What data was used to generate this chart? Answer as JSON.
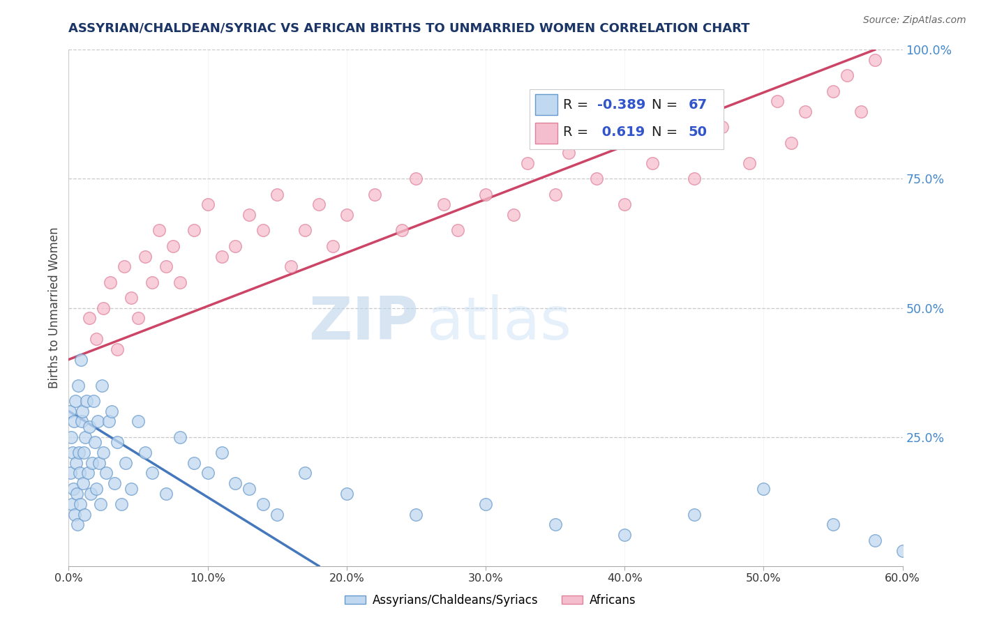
{
  "title": "ASSYRIAN/CHALDEAN/SYRIAC VS AFRICAN BIRTHS TO UNMARRIED WOMEN CORRELATION CHART",
  "source": "Source: ZipAtlas.com",
  "ylabel": "Births to Unmarried Women",
  "legend1_label": "Assyrians/Chaldeans/Syriacs",
  "legend2_label": "Africans",
  "R1": -0.389,
  "N1": 67,
  "R2": 0.619,
  "N2": 50,
  "color_blue_fill": "#c0d8f0",
  "color_blue_edge": "#6699cc",
  "color_pink_fill": "#f5bece",
  "color_pink_edge": "#e0809a",
  "color_blue_line": "#4477bb",
  "color_pink_line": "#cc4466",
  "xmin": 0.0,
  "xmax": 60.0,
  "ymin": 0.0,
  "ymax": 100.0,
  "yticks": [
    25,
    50,
    75,
    100
  ],
  "ytick_labels": [
    "25.0%",
    "50.0%",
    "75.0%",
    "100.0%"
  ],
  "xticks": [
    0,
    10,
    20,
    30,
    40,
    50,
    60
  ],
  "xtick_labels": [
    "0.0%",
    "10.0%",
    "20.0%",
    "30.0%",
    "40.0%",
    "50.0%",
    "60.0%"
  ],
  "blue_x": [
    0.1,
    0.15,
    0.2,
    0.25,
    0.3,
    0.35,
    0.4,
    0.45,
    0.5,
    0.55,
    0.6,
    0.65,
    0.7,
    0.75,
    0.8,
    0.85,
    0.9,
    0.95,
    1.0,
    1.05,
    1.1,
    1.15,
    1.2,
    1.3,
    1.4,
    1.5,
    1.6,
    1.7,
    1.8,
    1.9,
    2.0,
    2.1,
    2.2,
    2.3,
    2.4,
    2.5,
    2.7,
    2.9,
    3.1,
    3.3,
    3.5,
    3.8,
    4.1,
    4.5,
    5.0,
    5.5,
    6.0,
    7.0,
    8.0,
    9.0,
    10.0,
    11.0,
    12.0,
    13.0,
    14.0,
    15.0,
    17.0,
    20.0,
    25.0,
    30.0,
    35.0,
    40.0,
    45.0,
    50.0,
    55.0,
    58.0,
    60.0
  ],
  "blue_y": [
    30,
    18,
    25,
    12,
    22,
    15,
    28,
    10,
    32,
    20,
    14,
    8,
    35,
    22,
    18,
    12,
    40,
    28,
    30,
    16,
    22,
    10,
    25,
    32,
    18,
    27,
    14,
    20,
    32,
    24,
    15,
    28,
    20,
    12,
    35,
    22,
    18,
    28,
    30,
    16,
    24,
    12,
    20,
    15,
    28,
    22,
    18,
    14,
    25,
    20,
    18,
    22,
    16,
    15,
    12,
    10,
    18,
    14,
    10,
    12,
    8,
    6,
    10,
    15,
    8,
    5,
    3
  ],
  "pink_x": [
    1.5,
    2.0,
    2.5,
    3.0,
    3.5,
    4.0,
    4.5,
    5.0,
    5.5,
    6.0,
    6.5,
    7.0,
    7.5,
    8.0,
    9.0,
    10.0,
    11.0,
    12.0,
    13.0,
    14.0,
    15.0,
    16.0,
    17.0,
    18.0,
    19.0,
    20.0,
    22.0,
    24.0,
    25.0,
    27.0,
    28.0,
    30.0,
    32.0,
    33.0,
    35.0,
    36.0,
    38.0,
    40.0,
    42.0,
    44.0,
    45.0,
    47.0,
    49.0,
    51.0,
    52.0,
    53.0,
    55.0,
    56.0,
    57.0,
    58.0
  ],
  "pink_y": [
    48,
    44,
    50,
    55,
    42,
    58,
    52,
    48,
    60,
    55,
    65,
    58,
    62,
    55,
    65,
    70,
    60,
    62,
    68,
    65,
    72,
    58,
    65,
    70,
    62,
    68,
    72,
    65,
    75,
    70,
    65,
    72,
    68,
    78,
    72,
    80,
    75,
    70,
    78,
    82,
    75,
    85,
    78,
    90,
    82,
    88,
    92,
    95,
    88,
    98
  ]
}
